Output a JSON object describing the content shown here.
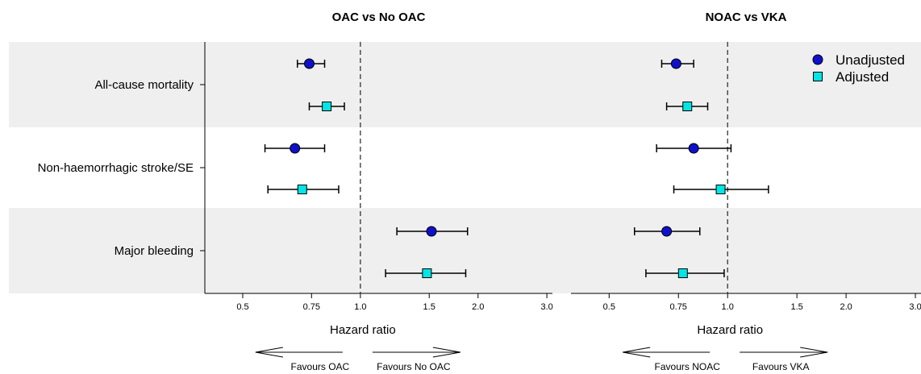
{
  "chart_data": {
    "type": "forest",
    "xlabel": "Hazard ratio",
    "x_scale": "log",
    "reference_line": 1.0,
    "rows": [
      "All-cause mortality",
      "Non-haemorrhagic stroke/SE",
      "Major bleeding"
    ],
    "legend": [
      {
        "name": "Unadjusted",
        "marker": "circle",
        "color": "#1010cc"
      },
      {
        "name": "Adjusted",
        "marker": "square",
        "color": "#00e5e5"
      }
    ],
    "shaded_rows": [
      0,
      2
    ],
    "panels": [
      {
        "title": "OAC vs No OAC",
        "xticks": [
          "0.5",
          "0.75",
          "1.0",
          "1.5",
          "2.0",
          "3.0"
        ],
        "xlim": [
          0.4,
          3.1
        ],
        "favours_left": "Favours OAC",
        "favours_right": "Favours No OAC",
        "points": [
          {
            "row": 0,
            "series": "Unadjusted",
            "hr": 0.74,
            "lo": 0.69,
            "hi": 0.81
          },
          {
            "row": 0,
            "series": "Adjusted",
            "hr": 0.82,
            "lo": 0.74,
            "hi": 0.91
          },
          {
            "row": 1,
            "series": "Unadjusted",
            "hr": 0.68,
            "lo": 0.57,
            "hi": 0.81
          },
          {
            "row": 1,
            "series": "Adjusted",
            "hr": 0.71,
            "lo": 0.58,
            "hi": 0.88
          },
          {
            "row": 2,
            "series": "Unadjusted",
            "hr": 1.52,
            "lo": 1.24,
            "hi": 1.88
          },
          {
            "row": 2,
            "series": "Adjusted",
            "hr": 1.48,
            "lo": 1.16,
            "hi": 1.86
          }
        ]
      },
      {
        "title": "NOAC vs VKA",
        "xticks": [
          "0.5",
          "0.75",
          "1.0",
          "1.5",
          "2.0",
          "3.0"
        ],
        "xlim": [
          0.4,
          3.1
        ],
        "favours_left": "Favours NOAC",
        "favours_right": "Favours VKA",
        "points": [
          {
            "row": 0,
            "series": "Unadjusted",
            "hr": 0.74,
            "lo": 0.68,
            "hi": 0.82
          },
          {
            "row": 0,
            "series": "Adjusted",
            "hr": 0.79,
            "lo": 0.7,
            "hi": 0.89
          },
          {
            "row": 1,
            "series": "Unadjusted",
            "hr": 0.82,
            "lo": 0.66,
            "hi": 1.02
          },
          {
            "row": 1,
            "series": "Adjusted",
            "hr": 0.96,
            "lo": 0.73,
            "hi": 1.27
          },
          {
            "row": 2,
            "series": "Unadjusted",
            "hr": 0.7,
            "lo": 0.58,
            "hi": 0.85
          },
          {
            "row": 2,
            "series": "Adjusted",
            "hr": 0.77,
            "lo": 0.62,
            "hi": 0.98
          }
        ]
      }
    ]
  }
}
